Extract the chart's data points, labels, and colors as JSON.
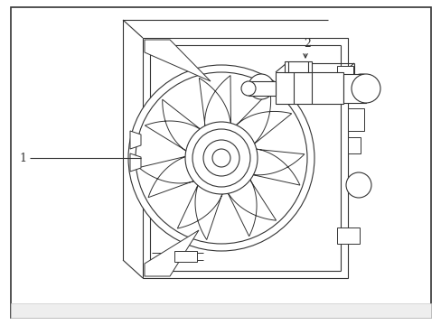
{
  "background_color": "#ffffff",
  "line_color": "#333333",
  "label_1": "1",
  "label_2": "2",
  "fig_width": 4.89,
  "fig_height": 3.6,
  "dpi": 100
}
